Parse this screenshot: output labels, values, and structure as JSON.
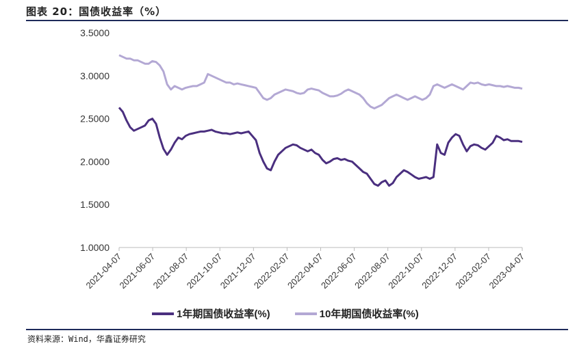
{
  "figure": {
    "title": "图表 20：国债收益率（%）",
    "source": "资料来源：Wind，华鑫证券研究"
  },
  "chart_data": {
    "type": "line",
    "ylim": [
      1.0,
      3.5
    ],
    "y_ticks": [
      "3.5000",
      "3.0000",
      "2.5000",
      "2.0000",
      "1.5000",
      "1.0000"
    ],
    "y_tick_values": [
      3.5,
      3.0,
      2.5,
      2.0,
      1.5,
      1.0
    ],
    "x_ticks": [
      "2021-04-07",
      "2021-06-07",
      "2021-08-07",
      "2021-10-07",
      "2021-12-07",
      "2022-02-07",
      "2022-04-07",
      "2022-06-07",
      "2022-08-07",
      "2022-10-07",
      "2022-12-07",
      "2023-02-07",
      "2023-04-07"
    ],
    "series": [
      {
        "name": "1年期国债收益率(%)",
        "color": "#4a2f7f",
        "values": [
          2.63,
          2.58,
          2.48,
          2.4,
          2.36,
          2.38,
          2.4,
          2.42,
          2.48,
          2.5,
          2.44,
          2.28,
          2.15,
          2.08,
          2.14,
          2.22,
          2.28,
          2.26,
          2.3,
          2.32,
          2.33,
          2.34,
          2.35,
          2.35,
          2.36,
          2.37,
          2.35,
          2.34,
          2.33,
          2.33,
          2.32,
          2.33,
          2.34,
          2.33,
          2.34,
          2.35,
          2.3,
          2.25,
          2.1,
          2.0,
          1.92,
          1.9,
          2.0,
          2.08,
          2.12,
          2.16,
          2.18,
          2.2,
          2.19,
          2.16,
          2.14,
          2.12,
          2.14,
          2.1,
          2.08,
          2.02,
          1.98,
          2.0,
          2.03,
          2.04,
          2.02,
          2.03,
          2.01,
          2.0,
          1.96,
          1.92,
          1.88,
          1.86,
          1.8,
          1.74,
          1.72,
          1.76,
          1.78,
          1.72,
          1.75,
          1.82,
          1.86,
          1.9,
          1.88,
          1.85,
          1.82,
          1.8,
          1.81,
          1.82,
          1.8,
          1.82,
          2.2,
          2.1,
          2.08,
          2.22,
          2.28,
          2.32,
          2.3,
          2.2,
          2.12,
          2.18,
          2.2,
          2.19,
          2.16,
          2.14,
          2.18,
          2.22,
          2.3,
          2.28,
          2.25,
          2.26,
          2.24,
          2.24,
          2.24,
          2.23
        ]
      },
      {
        "name": "10年期国债收益率(%)",
        "color": "#b3a8d4",
        "values": [
          3.24,
          3.22,
          3.2,
          3.2,
          3.18,
          3.18,
          3.16,
          3.14,
          3.14,
          3.17,
          3.16,
          3.12,
          3.05,
          2.9,
          2.84,
          2.88,
          2.86,
          2.84,
          2.86,
          2.87,
          2.88,
          2.88,
          2.9,
          2.92,
          3.02,
          3.0,
          2.98,
          2.96,
          2.94,
          2.92,
          2.92,
          2.9,
          2.91,
          2.9,
          2.89,
          2.88,
          2.87,
          2.86,
          2.8,
          2.74,
          2.72,
          2.74,
          2.78,
          2.8,
          2.82,
          2.84,
          2.83,
          2.82,
          2.8,
          2.79,
          2.8,
          2.84,
          2.85,
          2.84,
          2.83,
          2.8,
          2.78,
          2.76,
          2.76,
          2.77,
          2.79,
          2.82,
          2.84,
          2.82,
          2.8,
          2.78,
          2.74,
          2.68,
          2.64,
          2.62,
          2.64,
          2.66,
          2.7,
          2.74,
          2.76,
          2.78,
          2.76,
          2.74,
          2.72,
          2.74,
          2.76,
          2.74,
          2.72,
          2.74,
          2.78,
          2.88,
          2.9,
          2.88,
          2.86,
          2.88,
          2.9,
          2.88,
          2.86,
          2.84,
          2.88,
          2.92,
          2.91,
          2.92,
          2.9,
          2.89,
          2.9,
          2.89,
          2.88,
          2.88,
          2.87,
          2.88,
          2.87,
          2.86,
          2.86,
          2.85
        ]
      }
    ]
  }
}
